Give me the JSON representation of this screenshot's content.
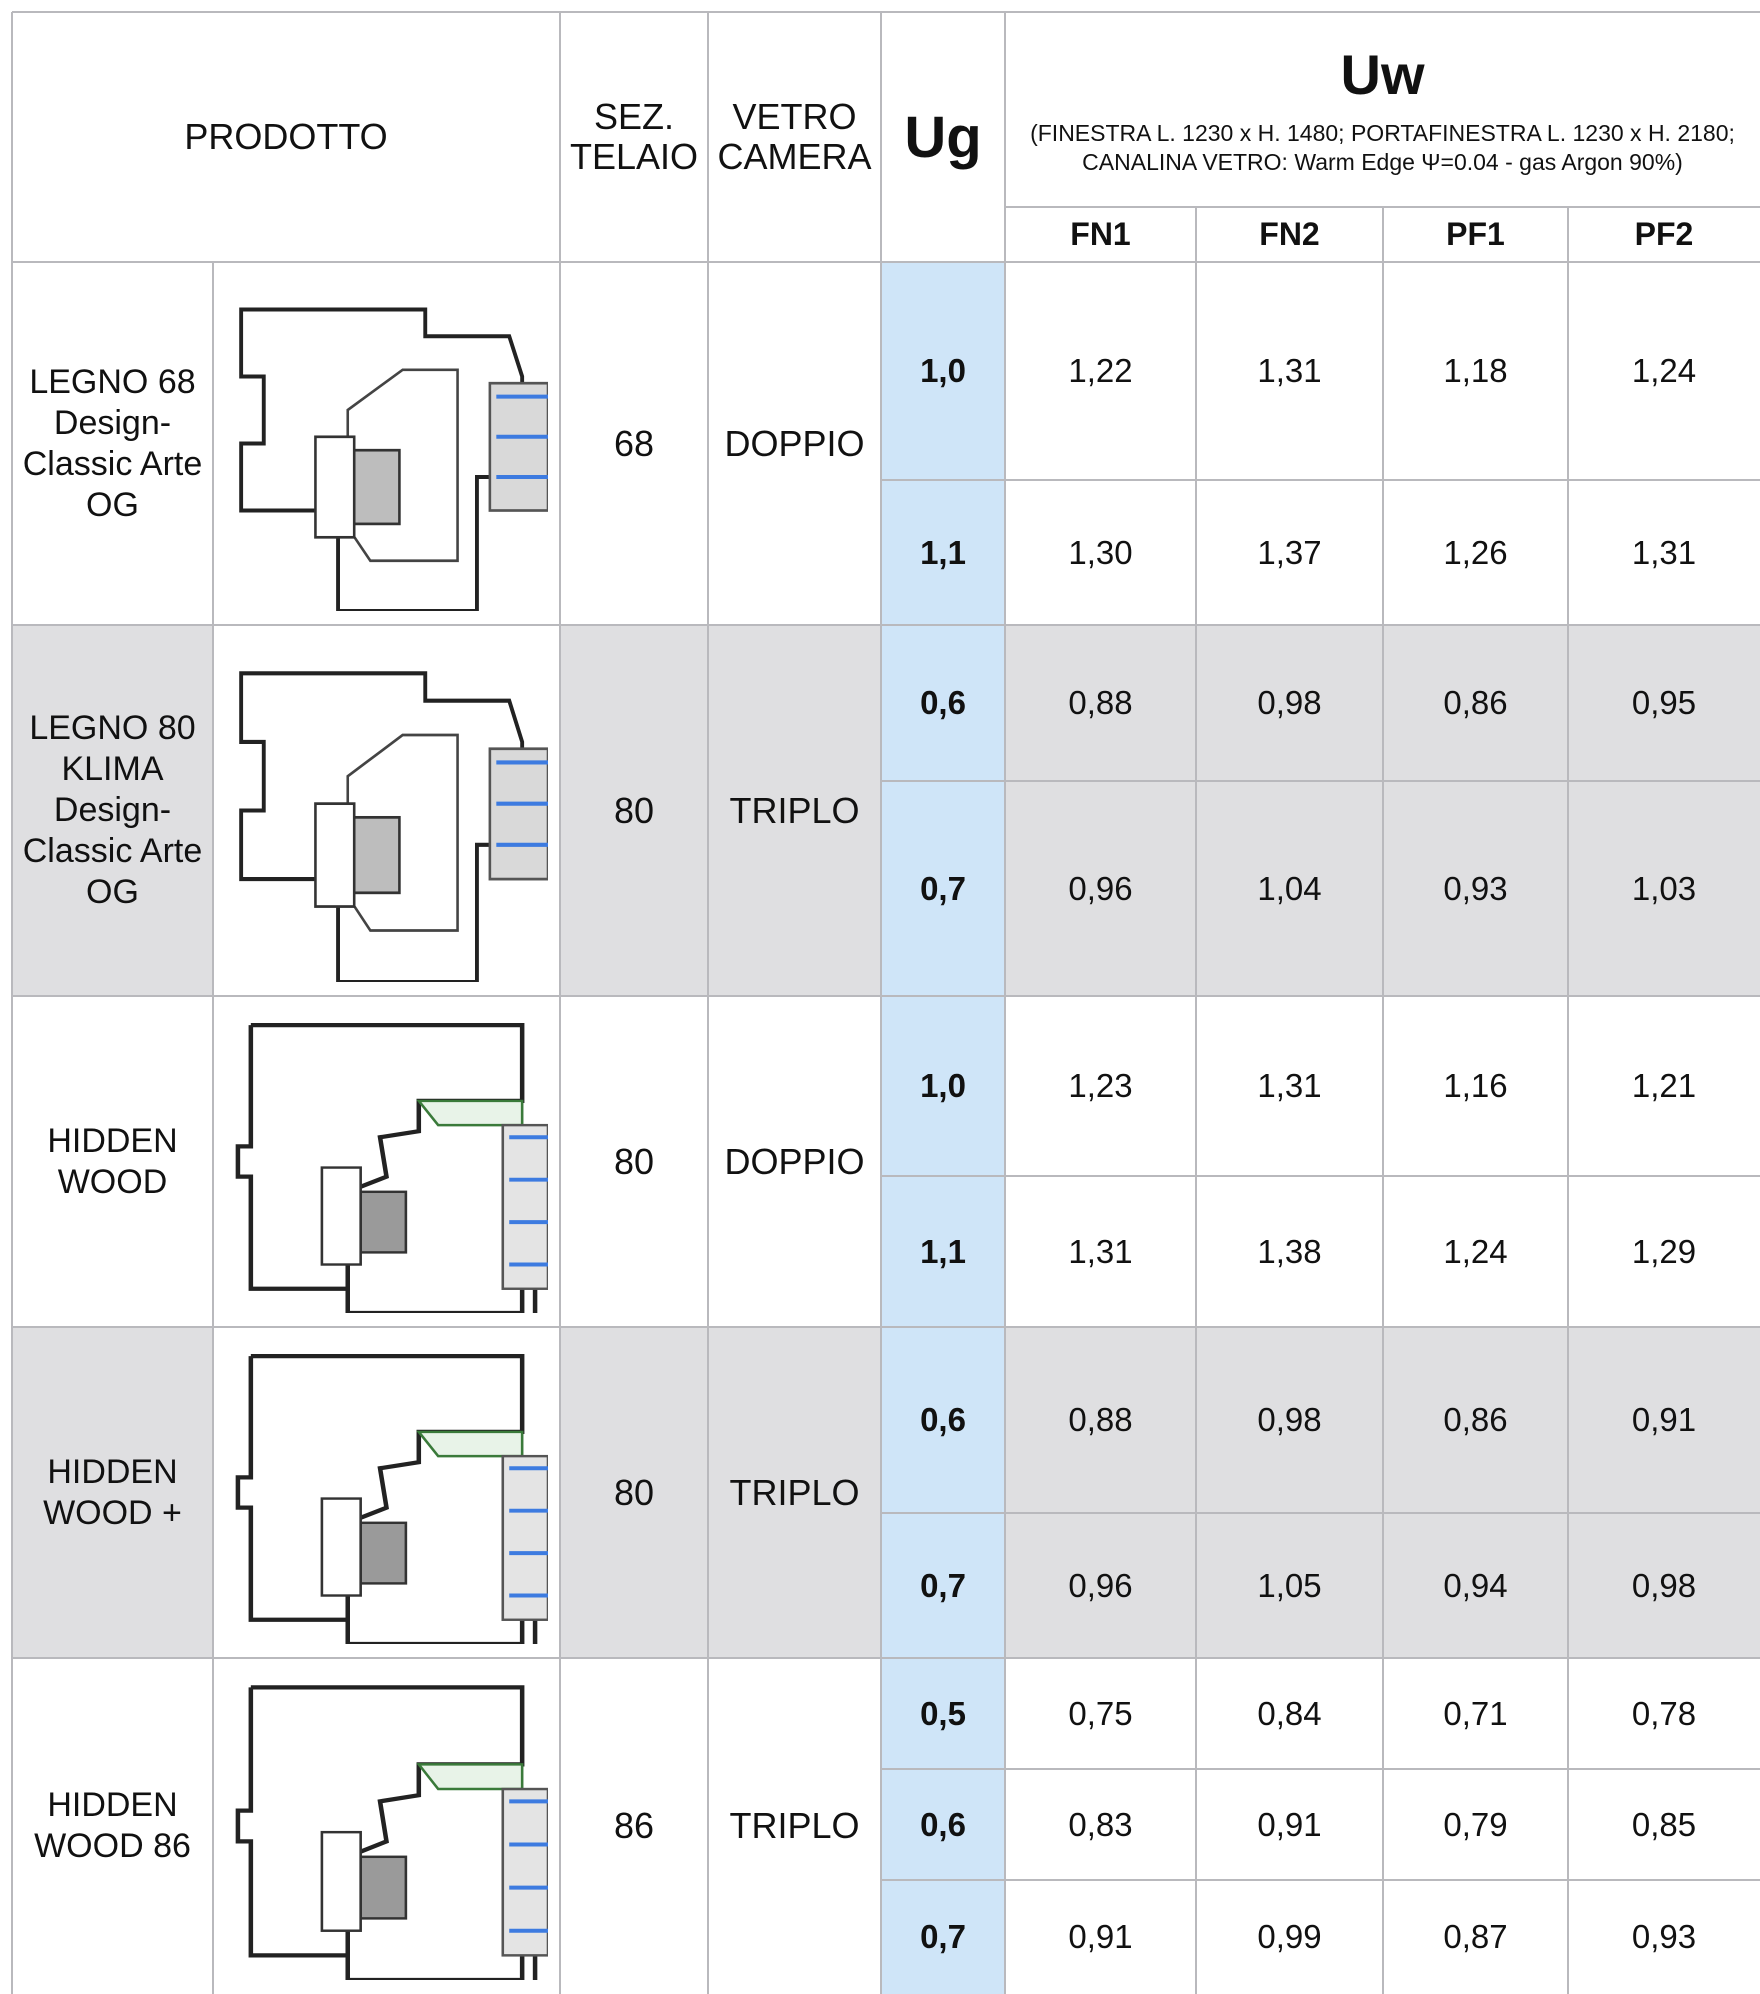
{
  "header": {
    "prodotto": "PRODOTTO",
    "sez_line1": "SEZ.",
    "sez_line2": "TELAIO",
    "vetro_line1": "VETRO",
    "vetro_line2": "CAMERA",
    "ug": "Ug",
    "uw": "Uw",
    "uw_note_line1": "(FINESTRA L. 1230 x H. 1480; PORTAFINESTRA L. 1230 x H. 2180;",
    "uw_note_line2": "CANALINA VETRO: Warm Edge Ψ=0.04 - gas Argon 90%)",
    "columns": [
      "FN1",
      "FN2",
      "PF1",
      "PF2"
    ]
  },
  "products": [
    {
      "name_lines": [
        "LEGNO 68"
      ],
      "sub_lines": [
        "Design-",
        "Classic Arte",
        "OG"
      ],
      "sezione": "68",
      "vetro": "DOPPIO",
      "rows": [
        {
          "ug": "1,0",
          "values": [
            "1,22",
            "1,31",
            "1,18",
            "1,24"
          ]
        },
        {
          "ug": "1,1",
          "values": [
            "1,30",
            "1,37",
            "1,26",
            "1,31"
          ]
        }
      ]
    },
    {
      "name_lines": [
        "LEGNO 80",
        "KLIMA"
      ],
      "sub_lines": [
        "Design-",
        "Classic Arte",
        "OG"
      ],
      "sezione": "80",
      "vetro": "TRIPLO",
      "rows": [
        {
          "ug": "0,6",
          "values": [
            "0,88",
            "0,98",
            "0,86",
            "0,95"
          ]
        },
        {
          "ug": "0,7",
          "values": [
            "0,96",
            "1,04",
            "0,93",
            "1,03"
          ]
        }
      ]
    },
    {
      "name_lines": [
        "HIDDEN",
        "WOOD"
      ],
      "sub_lines": [],
      "sezione": "80",
      "vetro": "DOPPIO",
      "rows": [
        {
          "ug": "1,0",
          "values": [
            "1,23",
            "1,31",
            "1,16",
            "1,21"
          ]
        },
        {
          "ug": "1,1",
          "values": [
            "1,31",
            "1,38",
            "1,24",
            "1,29"
          ]
        }
      ]
    },
    {
      "name_lines": [
        "HIDDEN",
        "WOOD +"
      ],
      "sub_lines": [],
      "sezione": "80",
      "vetro": "TRIPLO",
      "rows": [
        {
          "ug": "0,6",
          "values": [
            "0,88",
            "0,98",
            "0,86",
            "0,91"
          ]
        },
        {
          "ug": "0,7",
          "values": [
            "0,96",
            "1,05",
            "0,94",
            "0,98"
          ]
        }
      ]
    },
    {
      "name_lines": [
        "HIDDEN",
        "WOOD 86"
      ],
      "sub_lines": [],
      "sezione": "86",
      "vetro": "TRIPLO",
      "rows": [
        {
          "ug": "0,5",
          "values": [
            "0,75",
            "0,84",
            "0,71",
            "0,78"
          ]
        },
        {
          "ug": "0,6",
          "values": [
            "0,83",
            "0,91",
            "0,79",
            "0,85"
          ]
        },
        {
          "ug": "0,7",
          "values": [
            "0,91",
            "0,99",
            "0,87",
            "0,93"
          ]
        }
      ]
    }
  ]
}
